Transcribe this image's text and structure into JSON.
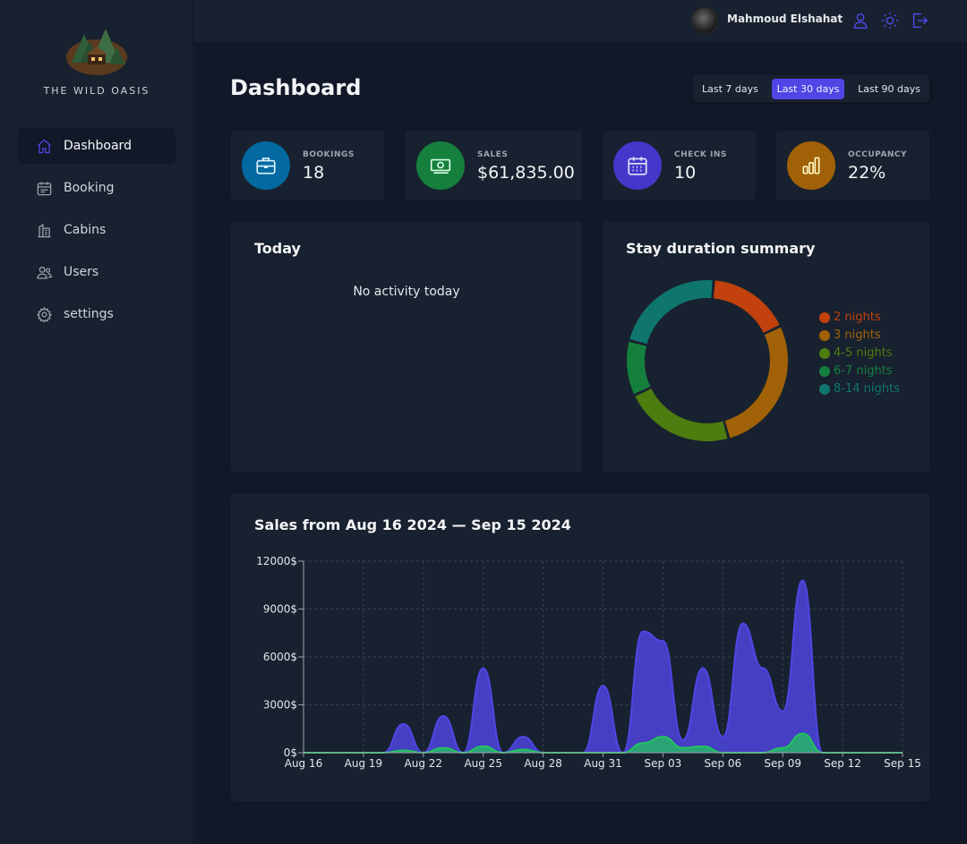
{
  "brand": {
    "name": "THE WILD OASIS"
  },
  "sidebar": {
    "items": [
      {
        "label": "Dashboard",
        "icon": "home-icon",
        "active": true
      },
      {
        "label": "Booking",
        "icon": "calendar-icon",
        "active": false
      },
      {
        "label": "Cabins",
        "icon": "building-icon",
        "active": false
      },
      {
        "label": "Users",
        "icon": "users-icon",
        "active": false
      },
      {
        "label": "settings",
        "icon": "gear-icon",
        "active": false
      }
    ]
  },
  "header": {
    "username": "Mahmoud Elshahat",
    "icons": [
      "user-icon",
      "sun-icon",
      "logout-icon"
    ]
  },
  "main": {
    "title": "Dashboard",
    "filters": [
      {
        "label": "Last 7 days",
        "active": false
      },
      {
        "label": "Last 30 days",
        "active": true
      },
      {
        "label": "Last 90 days",
        "active": false
      }
    ],
    "stats": [
      {
        "label": "BOOKINGS",
        "value": "18",
        "icon": "briefcase-icon",
        "color": "#0369a1"
      },
      {
        "label": "SALES",
        "value": "$61,835.00",
        "icon": "banknotes-icon",
        "color": "#15803d"
      },
      {
        "label": "CHECK INS",
        "value": "10",
        "icon": "calendar-days-icon",
        "color": "#4338ca"
      },
      {
        "label": "OCCUPANCY",
        "value": "22%",
        "icon": "chart-bar-icon",
        "color": "#a16207"
      }
    ],
    "today": {
      "title": "Today",
      "empty": "No activity today"
    },
    "duration": {
      "title": "Stay duration summary",
      "legend": [
        {
          "label": "2 nights",
          "color": "#c2410c"
        },
        {
          "label": "3 nights",
          "color": "#a16207"
        },
        {
          "label": "4-5 nights",
          "color": "#4d7c0f"
        },
        {
          "label": "6-7 nights",
          "color": "#15803d"
        },
        {
          "label": "8-14 nights",
          "color": "#0f766e"
        }
      ]
    },
    "sales": {
      "title": "Sales from Aug 16 2024 — Sep 15 2024"
    }
  },
  "chart_data": [
    {
      "type": "pie",
      "title": "Stay duration summary",
      "categories": [
        "2 nights",
        "3 nights",
        "4-5 nights",
        "6-7 nights",
        "8-14 nights"
      ],
      "values": [
        3,
        5,
        4,
        2,
        4
      ],
      "colors": [
        "#c2410c",
        "#a16207",
        "#4d7c0f",
        "#15803d",
        "#0f766e"
      ],
      "legend": "right"
    },
    {
      "type": "area",
      "title": "Sales from Aug 16 2024 — Sep 15 2024",
      "categories": [
        "Aug 16",
        "Aug 17",
        "Aug 18",
        "Aug 19",
        "Aug 20",
        "Aug 21",
        "Aug 22",
        "Aug 23",
        "Aug 24",
        "Aug 25",
        "Aug 26",
        "Aug 27",
        "Aug 28",
        "Aug 29",
        "Aug 30",
        "Aug 31",
        "Sep 01",
        "Sep 02",
        "Sep 03",
        "Sep 04",
        "Sep 05",
        "Sep 06",
        "Sep 07",
        "Sep 08",
        "Sep 09",
        "Sep 10",
        "Sep 11",
        "Sep 12",
        "Sep 13",
        "Sep 14",
        "Sep 15"
      ],
      "x_ticks": [
        "Aug 16",
        "Aug 19",
        "Aug 22",
        "Aug 25",
        "Aug 28",
        "Aug 31",
        "Sep 03",
        "Sep 06",
        "Sep 09",
        "Sep 12",
        "Sep 15"
      ],
      "y_ticks": [
        "0$",
        "3000$",
        "6000$",
        "9000$",
        "12000$"
      ],
      "ylim": [
        0,
        12000
      ],
      "grid": true,
      "series": [
        {
          "color": "#4f46e5",
          "values": [
            0,
            0,
            0,
            0,
            0,
            1800,
            0,
            2300,
            0,
            5300,
            0,
            1000,
            0,
            0,
            0,
            4200,
            0,
            7600,
            7000,
            800,
            5300,
            1000,
            8100,
            5300,
            2600,
            10800,
            0,
            0,
            0,
            0,
            0
          ]
        },
        {
          "color": "#22c55e",
          "values": [
            0,
            0,
            0,
            0,
            0,
            150,
            0,
            300,
            0,
            400,
            0,
            200,
            0,
            0,
            0,
            0,
            0,
            600,
            1000,
            300,
            400,
            0,
            0,
            0,
            300,
            1200,
            0,
            0,
            0,
            0,
            0
          ]
        }
      ]
    }
  ]
}
